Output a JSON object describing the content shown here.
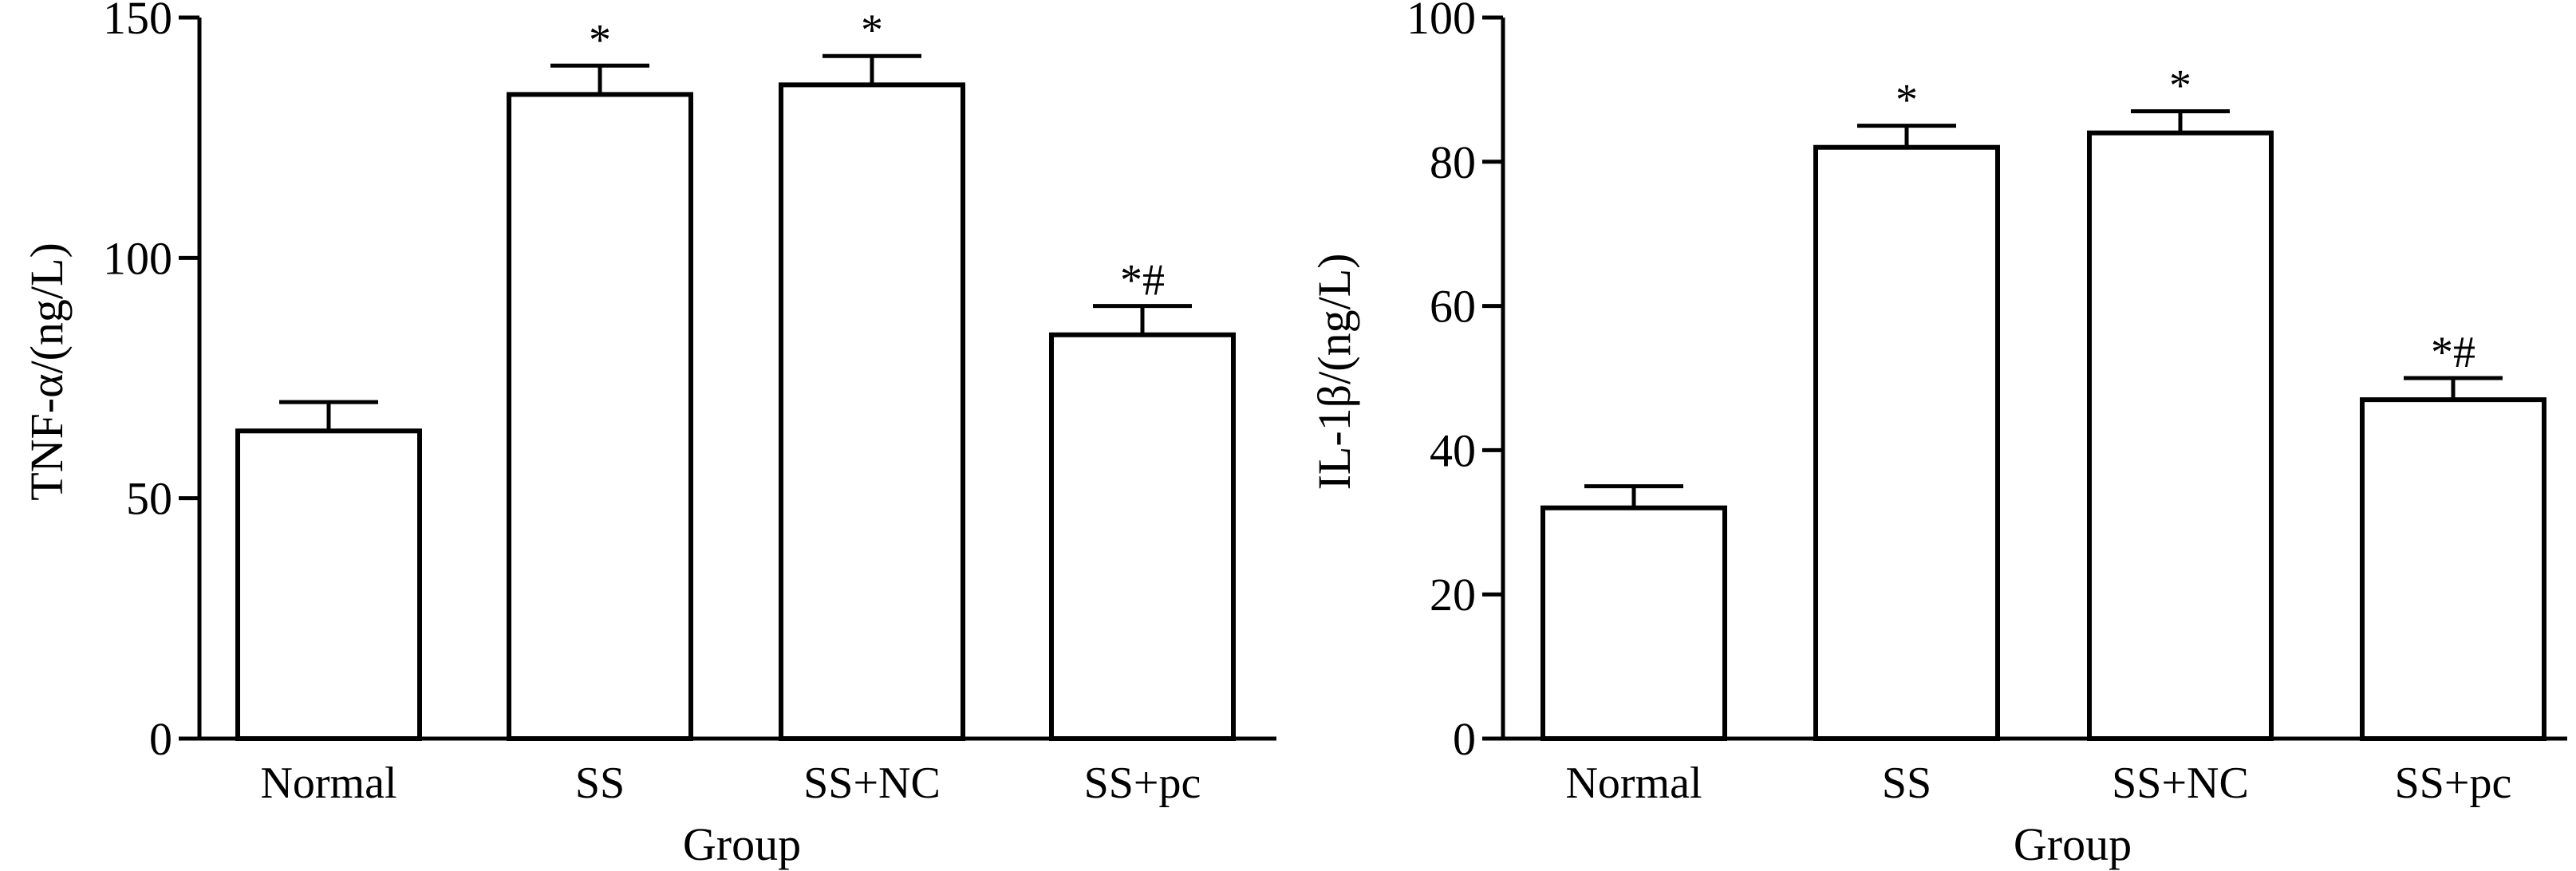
{
  "chart_data": [
    {
      "type": "bar",
      "title": "",
      "xlabel": "Group",
      "ylabel": "TNF-α/(ng/L)",
      "categories": [
        "Normal",
        "SS",
        "SS+NC",
        "SS+pc"
      ],
      "values": [
        64,
        134,
        136,
        84
      ],
      "errors": [
        6,
        6,
        6,
        6
      ],
      "annotations": [
        "",
        "*",
        "*",
        "*#"
      ],
      "ylim": [
        0,
        150
      ],
      "yticks": [
        0,
        50,
        100,
        150
      ],
      "ytick_labels": [
        "0",
        "50",
        "100",
        "150"
      ],
      "grid": false,
      "legend": "none",
      "colors": {
        "bar_fill": "#ffffff",
        "bar_stroke": "#000000",
        "axis": "#000000"
      }
    },
    {
      "type": "bar",
      "title": "",
      "xlabel": "Group",
      "ylabel": "IL-1β/(ng/L)",
      "categories": [
        "Normal",
        "SS",
        "SS+NC",
        "SS+pc"
      ],
      "values": [
        32,
        82,
        84,
        47
      ],
      "errors": [
        3,
        3,
        3,
        3
      ],
      "annotations": [
        "",
        "*",
        "*",
        "*#"
      ],
      "ylim": [
        0,
        100
      ],
      "yticks": [
        0,
        20,
        40,
        60,
        80,
        100
      ],
      "ytick_labels": [
        "0",
        "20",
        "40",
        "60",
        "80",
        "100"
      ],
      "grid": false,
      "legend": "none",
      "colors": {
        "bar_fill": "#ffffff",
        "bar_stroke": "#000000",
        "axis": "#000000"
      }
    }
  ]
}
